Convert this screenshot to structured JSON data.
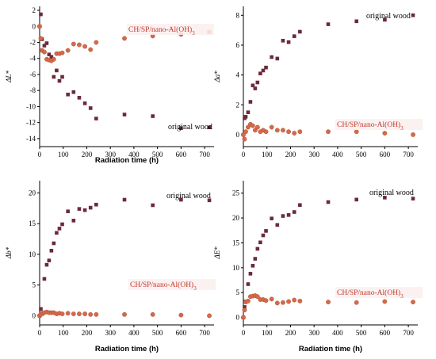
{
  "colors": {
    "original_wood": "#6b2a3a",
    "treated": "#d46a4a",
    "treated_label": "#c0392b",
    "axis": "#000000"
  },
  "chart_data": [
    {
      "type": "scatter",
      "xlabel": "Radiation time (h)",
      "ylabel": "ΔL*",
      "xlim": [
        0,
        740
      ],
      "ylim": [
        -15,
        2.5
      ],
      "xticks": [
        0,
        100,
        200,
        300,
        400,
        500,
        600,
        700
      ],
      "yticks": [
        2,
        0,
        -2,
        -4,
        -6,
        -8,
        -10,
        -12,
        -14
      ],
      "series": [
        {
          "name": "original wood",
          "marker": "square",
          "x": [
            0,
            5,
            10,
            20,
            30,
            40,
            50,
            60,
            72,
            84,
            96,
            120,
            144,
            168,
            192,
            216,
            240,
            360,
            480,
            600,
            720
          ],
          "y": [
            0,
            1.5,
            -1.6,
            -2.4,
            -2.1,
            -3.5,
            -3.8,
            -6.3,
            -5.5,
            -6.8,
            -6.3,
            -8.5,
            -8.2,
            -8.9,
            -9.6,
            -10.2,
            -11.5,
            -11.0,
            -11.2,
            -12.7,
            -12.6
          ]
        },
        {
          "name": "CH/SP/nano-Al(OH)3",
          "marker": "circle",
          "x": [
            0,
            5,
            10,
            20,
            30,
            40,
            50,
            60,
            72,
            84,
            96,
            120,
            144,
            168,
            192,
            216,
            240,
            360,
            480,
            600,
            720
          ],
          "y": [
            0,
            -1.5,
            -3.0,
            -3.2,
            -4.1,
            -4.2,
            -4.3,
            -4.1,
            -3.4,
            -3.4,
            -3.3,
            -3.0,
            -2.2,
            -2.3,
            -2.5,
            -2.9,
            -2.0,
            -1.5,
            -1.2,
            -1.0,
            -0.7
          ]
        }
      ],
      "annotations": [
        {
          "text": "CH/SP/nano-Al(OH)3",
          "series": "CH/SP/nano-Al(OH)3"
        },
        {
          "text": "original wood",
          "series": "original wood"
        }
      ]
    },
    {
      "type": "scatter",
      "xlabel": "",
      "ylabel": "Δa*",
      "xlim": [
        0,
        740
      ],
      "ylim": [
        -0.8,
        8.6
      ],
      "xticks": [
        0,
        100,
        200,
        300,
        400,
        500,
        600,
        700
      ],
      "yticks": [
        0,
        2,
        4,
        6,
        8
      ],
      "series": [
        {
          "name": "original wood",
          "marker": "square",
          "x": [
            0,
            5,
            10,
            20,
            30,
            40,
            50,
            60,
            72,
            84,
            96,
            120,
            144,
            168,
            192,
            216,
            240,
            360,
            480,
            600,
            720
          ],
          "y": [
            0,
            1.1,
            1.2,
            1.5,
            2.2,
            3.3,
            3.1,
            3.5,
            4.1,
            4.3,
            4.5,
            5.2,
            5.1,
            6.3,
            6.2,
            6.6,
            6.9,
            7.4,
            7.6,
            7.7,
            8.0
          ]
        },
        {
          "name": "CH/SP/nano-Al(OH)3",
          "marker": "circle",
          "x": [
            0,
            5,
            10,
            20,
            30,
            40,
            50,
            60,
            72,
            84,
            96,
            120,
            144,
            168,
            192,
            216,
            240,
            360,
            480,
            600,
            720
          ],
          "y": [
            0,
            -0.3,
            0.2,
            0.5,
            0.7,
            0.6,
            0.3,
            0.5,
            0.2,
            0.3,
            0.2,
            0.5,
            0.3,
            0.3,
            0.2,
            0.1,
            0.2,
            0.2,
            0.2,
            0.1,
            0.0
          ]
        }
      ],
      "annotations": [
        {
          "text": "original wood",
          "series": "original wood"
        },
        {
          "text": "CH/SP/nano-Al(OH)3",
          "series": "CH/SP/nano-Al(OH)3"
        }
      ]
    },
    {
      "type": "scatter",
      "xlabel": "Radiation time (h)",
      "ylabel": "Δb*",
      "xlim": [
        0,
        740
      ],
      "ylim": [
        -1.5,
        22
      ],
      "xticks": [
        0,
        100,
        200,
        300,
        400,
        500,
        600,
        700
      ],
      "yticks": [
        0,
        5,
        10,
        15,
        20
      ],
      "series": [
        {
          "name": "original wood",
          "marker": "square",
          "x": [
            0,
            5,
            10,
            20,
            30,
            40,
            50,
            60,
            72,
            84,
            96,
            120,
            144,
            168,
            192,
            216,
            240,
            360,
            480,
            600,
            720
          ],
          "y": [
            0,
            1.1,
            0.3,
            6.0,
            8.3,
            9.0,
            10.6,
            11.8,
            13.5,
            14.2,
            14.9,
            17.0,
            15.5,
            17.4,
            17.2,
            17.6,
            18.1,
            18.9,
            18.0,
            18.9,
            18.8
          ]
        },
        {
          "name": "CH/SP/nano-Al(OH)3",
          "marker": "circle",
          "x": [
            0,
            5,
            10,
            20,
            30,
            40,
            50,
            60,
            72,
            84,
            96,
            120,
            144,
            168,
            192,
            216,
            240,
            360,
            480,
            600,
            720
          ],
          "y": [
            0,
            0.2,
            0.4,
            0.5,
            0.6,
            0.5,
            0.5,
            0.5,
            0.3,
            0.4,
            0.3,
            0.4,
            0.3,
            0.3,
            0.3,
            0.2,
            0.2,
            0.2,
            0.2,
            0.1,
            0.0
          ]
        }
      ],
      "annotations": [
        {
          "text": "original wood",
          "series": "original wood"
        },
        {
          "text": "CH/SP/nano-Al(OH)3",
          "series": "CH/SP/nano-Al(OH)3"
        }
      ]
    },
    {
      "type": "scatter",
      "xlabel": "Radiation time (h)",
      "ylabel": "ΔE*",
      "xlim": [
        0,
        740
      ],
      "ylim": [
        -1.5,
        27.5
      ],
      "xticks": [
        0,
        100,
        200,
        300,
        400,
        500,
        600,
        700
      ],
      "yticks": [
        0,
        5,
        10,
        15,
        20,
        25
      ],
      "series": [
        {
          "name": "original wood",
          "marker": "square",
          "x": [
            0,
            5,
            10,
            20,
            30,
            40,
            50,
            60,
            72,
            84,
            96,
            120,
            144,
            168,
            192,
            216,
            240,
            360,
            480,
            600,
            720
          ],
          "y": [
            0,
            2.1,
            3.2,
            6.7,
            8.8,
            10.4,
            11.8,
            13.8,
            15.1,
            16.5,
            17.4,
            19.9,
            18.6,
            20.4,
            20.6,
            21.2,
            22.6,
            23.2,
            23.7,
            24.1,
            23.9
          ]
        },
        {
          "name": "CH/SP/nano-Al(OH)3",
          "marker": "circle",
          "x": [
            0,
            5,
            10,
            20,
            30,
            40,
            50,
            60,
            72,
            84,
            96,
            120,
            144,
            168,
            192,
            216,
            240,
            360,
            480,
            600,
            720
          ],
          "y": [
            0,
            1.5,
            3.1,
            3.3,
            4.2,
            4.3,
            4.4,
            4.2,
            3.6,
            3.6,
            3.4,
            3.7,
            2.9,
            3.0,
            3.2,
            3.5,
            3.3,
            3.1,
            3.0,
            3.2,
            3.1
          ]
        }
      ],
      "annotations": [
        {
          "text": "original wood",
          "series": "original wood"
        },
        {
          "text": "CH/SP/nano-Al(OH)3",
          "series": "CH/SP/nano-Al(OH)3"
        }
      ]
    }
  ]
}
